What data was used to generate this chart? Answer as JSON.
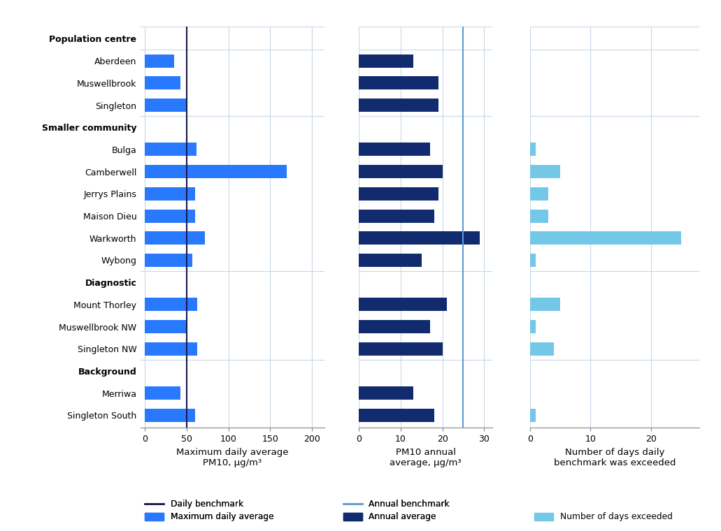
{
  "stations": [
    "Aberdeen",
    "Muswellbrook",
    "Singleton",
    "Bulga",
    "Camberwell",
    "Jerrys Plains",
    "Maison Dieu",
    "Warkworth",
    "Wybong",
    "Mount Thorley",
    "Muswellbrook NW",
    "Singleton NW",
    "Merriwa",
    "Singleton South"
  ],
  "max_daily_avg": [
    35,
    43,
    50,
    62,
    170,
    60,
    60,
    72,
    57,
    63,
    50,
    63,
    43,
    60
  ],
  "pm10_annual_avg": [
    13,
    19,
    19,
    17,
    20,
    19,
    18,
    29,
    15,
    21,
    17,
    20,
    13,
    18
  ],
  "days_exceeded": [
    0,
    0,
    0,
    1,
    5,
    3,
    3,
    25,
    1,
    5,
    1,
    4,
    0,
    1
  ],
  "daily_benchmark": 50,
  "annual_benchmark": 25,
  "bar_color_daily": "#2979FF",
  "bar_color_annual": "#122B6E",
  "bar_color_days": "#73C8E8",
  "benchmark_color_daily": "#1A1A4E",
  "benchmark_color_annual": "#5B9BD5",
  "xlabel1": "Maximum daily average\nPM10, μg/m³",
  "xlabel2": "PM10 annual\naverage, μg/m³",
  "xlabel3": "Number of days daily\nbenchmark was exceeded",
  "xlim1": [
    -5,
    215
  ],
  "xlim2": [
    0,
    32
  ],
  "xlim3": [
    0,
    28
  ],
  "xticks1": [
    0,
    50,
    100,
    150,
    200
  ],
  "xticks2": [
    0,
    10,
    20,
    30
  ],
  "xticks3": [
    0,
    10,
    20
  ],
  "background_color": "#FFFFFF",
  "grid_color": "#C8D8E8"
}
